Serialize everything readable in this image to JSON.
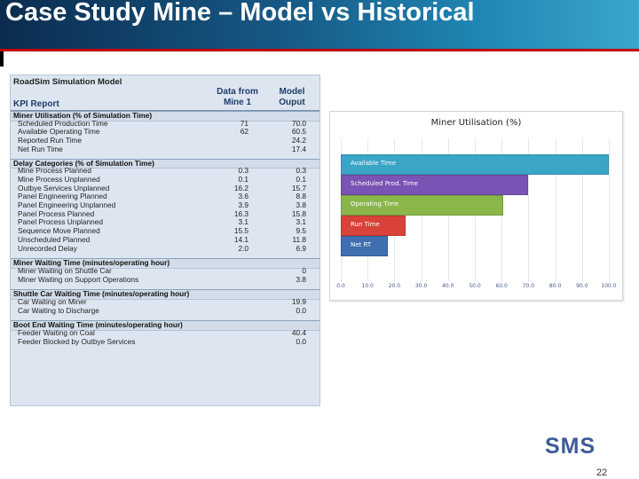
{
  "slide": {
    "title": "Case Study Mine – Model vs Historical",
    "page_number": "22",
    "logo_text": "SMS"
  },
  "table": {
    "model_title": "RoadSim Simulation Model",
    "report_title": "KPI Report",
    "col1_header": "Data from Mine 1",
    "col2_header": "Model Ouput",
    "sections": [
      {
        "title": "Miner Utilisation (% of Simulation Time)",
        "rows": [
          {
            "label": "Scheduled Production Time",
            "v1": "71",
            "v2": "70.0"
          },
          {
            "label": "Available Operating Time",
            "v1": "62",
            "v2": "60.5"
          },
          {
            "label": "Reported Run Time",
            "v1": "",
            "v2": "24.2"
          },
          {
            "label": "Net Run Time",
            "v1": "",
            "v2": "17.4"
          }
        ]
      },
      {
        "title": "Delay Categories (% of Simulation Time)",
        "rows": [
          {
            "label": "Mine Process Planned",
            "v1": "0.3",
            "v2": "0.3"
          },
          {
            "label": "Mine Process Unplanned",
            "v1": "0.1",
            "v2": "0.1"
          },
          {
            "label": "Outbye Services Unplanned",
            "v1": "16.2",
            "v2": "15.7"
          },
          {
            "label": "Panel Engineering Planned",
            "v1": "3.6",
            "v2": "8.8"
          },
          {
            "label": "Panel Engineering Unplanned",
            "v1": "3.9",
            "v2": "3.8"
          },
          {
            "label": "Panel Process Planned",
            "v1": "16.3",
            "v2": "15.8"
          },
          {
            "label": "Panel Process Unplanned",
            "v1": "3.1",
            "v2": "3.1"
          },
          {
            "label": "Sequence Move Planned",
            "v1": "15.5",
            "v2": "9.5"
          },
          {
            "label": "Unscheduled Planned",
            "v1": "14.1",
            "v2": "11.8"
          },
          {
            "label": "Unrecorded Delay",
            "v1": "2.0",
            "v2": "6.9"
          }
        ]
      },
      {
        "title": "Miner Waiting Time (minutes/operating hour)",
        "rows": [
          {
            "label": "Miner Waiting on Shuttle Car",
            "v1": "",
            "v2": "0"
          },
          {
            "label": "Miner Waiting on Support Operations",
            "v1": "",
            "v2": "3.8"
          }
        ]
      },
      {
        "title": "Shuttle Car Waiting Time (minutes/operating hour)",
        "rows": [
          {
            "label": "Car Waiting on Miner",
            "v1": "",
            "v2": "19.9"
          },
          {
            "label": "Car Waiting to Discharge",
            "v1": "",
            "v2": "0.0"
          }
        ]
      },
      {
        "title": "Boot End Waiting Time (minutes/operating hour)",
        "rows": [
          {
            "label": "Feeder Waiting on Coal",
            "v1": "",
            "v2": "40.4"
          },
          {
            "label": "Feeder Blocked by Outbye Services",
            "v1": "",
            "v2": "0.0"
          }
        ]
      }
    ]
  },
  "chart_data": {
    "type": "bar",
    "orientation": "horizontal",
    "title": "Miner Utilisation (%)",
    "categories": [
      "Available Time",
      "Scheduled Prod. Time",
      "Operating Time",
      "Run Time",
      "Net RT"
    ],
    "values": [
      100,
      70.0,
      60.5,
      24.2,
      17.4
    ],
    "colors": [
      "#3aa5c7",
      "#7a54b4",
      "#8ab64a",
      "#d94238",
      "#3f6fb0"
    ],
    "xticks": [
      "0.0",
      "10.0",
      "20.0",
      "30.0",
      "40.0",
      "50.0",
      "60.0",
      "70.0",
      "80.0",
      "90.0",
      "100.0"
    ],
    "xlim": [
      0,
      100
    ],
    "grid": true
  }
}
